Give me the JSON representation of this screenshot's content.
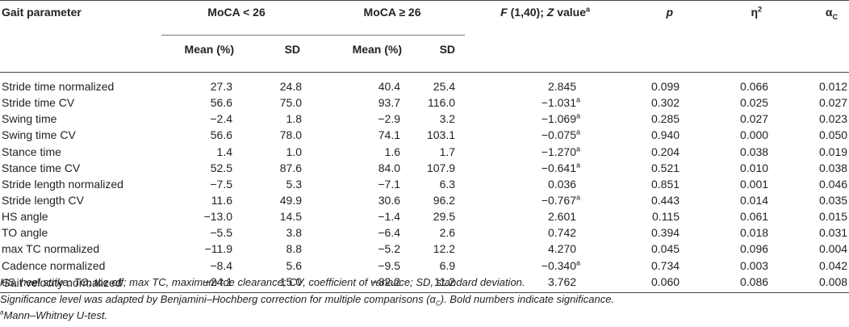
{
  "header": {
    "param": "Gait parameter",
    "group1": "MoCA < 26",
    "group2": "MoCA ≥ 26",
    "stat_F": "F",
    "stat_rest": " (1,40); ",
    "stat_Z": "Z",
    "stat_value": " value",
    "stat_sup": "a",
    "p": "p",
    "eta": "η",
    "eta_sup": "2",
    "alpha": "α",
    "alpha_sub": "C",
    "mean": "Mean (%)",
    "sd": "SD"
  },
  "rows": [
    {
      "param": "Stride time normalized",
      "m1": "27.3",
      "sd1": "24.8",
      "m2": "40.4",
      "sd2": "25.4",
      "stat": "2.845",
      "sup": "",
      "p": "0.099",
      "eta": "0.066",
      "alpha": "0.012"
    },
    {
      "param": "Stride time CV",
      "m1": "56.6",
      "sd1": "75.0",
      "m2": "93.7",
      "sd2": "116.0",
      "stat": "−1.031",
      "sup": "a",
      "p": "0.302",
      "eta": "0.025",
      "alpha": "0.027"
    },
    {
      "param": "Swing time",
      "m1": "−2.4",
      "sd1": "1.8",
      "m2": "−2.9",
      "sd2": "3.2",
      "stat": "−1.069",
      "sup": "a",
      "p": "0.285",
      "eta": "0.027",
      "alpha": "0.023"
    },
    {
      "param": "Swing time CV",
      "m1": "56.6",
      "sd1": "78.0",
      "m2": "74.1",
      "sd2": "103.1",
      "stat": "−0.075",
      "sup": "a",
      "p": "0.940",
      "eta": "0.000",
      "alpha": "0.050"
    },
    {
      "param": "Stance time",
      "m1": "1.4",
      "sd1": "1.0",
      "m2": "1.6",
      "sd2": "1.7",
      "stat": "−1.270",
      "sup": "a",
      "p": "0.204",
      "eta": "0.038",
      "alpha": "0.019"
    },
    {
      "param": "Stance time CV",
      "m1": "52.5",
      "sd1": "87.6",
      "m2": "84.0",
      "sd2": "107.9",
      "stat": "−0.641",
      "sup": "a",
      "p": "0.521",
      "eta": "0.010",
      "alpha": "0.038"
    },
    {
      "param": "Stride length normalized",
      "m1": "−7.5",
      "sd1": "5.3",
      "m2": "−7.1",
      "sd2": "6.3",
      "stat": "0.036",
      "sup": "",
      "p": "0.851",
      "eta": "0.001",
      "alpha": "0.046"
    },
    {
      "param": "Stride length CV",
      "m1": "11.6",
      "sd1": "49.9",
      "m2": "30.6",
      "sd2": "96.2",
      "stat": "−0.767",
      "sup": "a",
      "p": "0.443",
      "eta": "0.014",
      "alpha": "0.035"
    },
    {
      "param": "HS angle",
      "m1": "−13.0",
      "sd1": "14.5",
      "m2": "−1.4",
      "sd2": "29.5",
      "stat": "2.601",
      "sup": "",
      "p": "0.115",
      "eta": "0.061",
      "alpha": "0.015"
    },
    {
      "param": "TO angle",
      "m1": "−5.5",
      "sd1": "3.8",
      "m2": "−6.4",
      "sd2": "2.6",
      "stat": "0.742",
      "sup": "",
      "p": "0.394",
      "eta": "0.018",
      "alpha": "0.031"
    },
    {
      "param": "max TC normalized",
      "m1": "−11.9",
      "sd1": "8.8",
      "m2": "−5.2",
      "sd2": "12.2",
      "stat": "4.270",
      "sup": "",
      "p": "0.045",
      "eta": "0.096",
      "alpha": "0.004"
    },
    {
      "param": "Cadence normalized",
      "m1": "−8.4",
      "sd1": "5.6",
      "m2": "−9.5",
      "sd2": "6.9",
      "stat": "−0.340",
      "sup": "a",
      "p": "0.734",
      "eta": "0.003",
      "alpha": "0.042"
    },
    {
      "param": "Gait velocity normalized",
      "m1": "−24.1",
      "sd1": "15.0",
      "m2": "−32.2",
      "sd2": "11.2",
      "stat": "3.762",
      "sup": "",
      "p": "0.060",
      "eta": "0.086",
      "alpha": "0.008"
    }
  ],
  "notes": {
    "line1": "HS, heel strike; TO, toe off; max TC, maximum toe clearance; CV, coefficient of variance; SD, standard deviation.",
    "line2_a": "Significance level was adapted by Benjamini–Hochberg correction for multiple comparisons (α",
    "line2_sub": "C",
    "line2_b": "). Bold numbers indicate significance.",
    "line3_sup": "a",
    "line3": "Mann–Whitney U-test."
  }
}
